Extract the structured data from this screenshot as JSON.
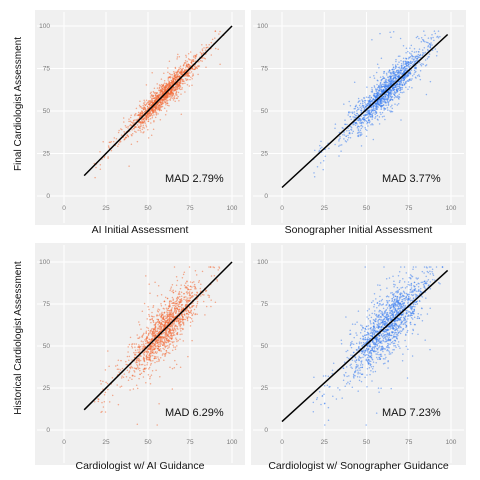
{
  "colors": {
    "ai": "#f26a36",
    "sonographer": "#3a7ef0",
    "panel_bg": "#f0f0f0",
    "grid": "#ffffff",
    "identity_line": "#000000"
  },
  "row_labels": [
    "Final Cardiologist Assessment",
    "Historical Cardiologist Assessment"
  ],
  "chart_data": [
    {
      "type": "scatter",
      "xlabel": "AI Initial Assessment",
      "ylabel": "Final Cardiologist Assessment",
      "annotation": "MAD 2.79%",
      "series_color": "ai",
      "xlim": [
        0,
        100
      ],
      "ylim": [
        0,
        100
      ],
      "xticks": [
        "0",
        "25",
        "50",
        "75",
        "100"
      ],
      "yticks": [
        "0",
        "25",
        "50",
        "75",
        "100"
      ],
      "grid": true,
      "identity_line": [
        [
          12,
          12
        ],
        [
          100,
          100
        ]
      ],
      "point_summary": {
        "n_approx": 1400,
        "x_center": 60,
        "x_spread": 10,
        "residual_spread": 3.5
      }
    },
    {
      "type": "scatter",
      "xlabel": "Sonographer Initial Assessment",
      "ylabel": "",
      "annotation": "MAD 3.77%",
      "series_color": "sonographer",
      "xlim": [
        0,
        100
      ],
      "ylim": [
        0,
        100
      ],
      "xticks": [
        "0",
        "25",
        "50",
        "75",
        "100"
      ],
      "yticks": [
        "0",
        "25",
        "50",
        "75",
        "100"
      ],
      "grid": true,
      "identity_line": [
        [
          0,
          5
        ],
        [
          98,
          95
        ]
      ],
      "point_summary": {
        "n_approx": 1400,
        "x_center": 62,
        "x_spread": 11,
        "residual_spread": 5
      }
    },
    {
      "type": "scatter",
      "xlabel": "Cardiologist w/ AI Guidance",
      "ylabel": "Historical Cardiologist Assessment",
      "annotation": "MAD 6.29%",
      "series_color": "ai",
      "xlim": [
        0,
        100
      ],
      "ylim": [
        0,
        100
      ],
      "xticks": [
        "0",
        "25",
        "50",
        "75",
        "100"
      ],
      "yticks": [
        "0",
        "25",
        "50",
        "75",
        "100"
      ],
      "grid": true,
      "identity_line": [
        [
          12,
          12
        ],
        [
          100,
          100
        ]
      ],
      "point_summary": {
        "n_approx": 1400,
        "x_center": 60,
        "x_spread": 10,
        "residual_spread": 7.5
      }
    },
    {
      "type": "scatter",
      "xlabel": "Cardiologist w/ Sonographer Guidance",
      "ylabel": "",
      "annotation": "MAD 7.23%",
      "series_color": "sonographer",
      "xlim": [
        0,
        100
      ],
      "ylim": [
        0,
        100
      ],
      "xticks": [
        "0",
        "25",
        "50",
        "75",
        "100"
      ],
      "yticks": [
        "0",
        "25",
        "50",
        "75",
        "100"
      ],
      "grid": true,
      "identity_line": [
        [
          0,
          5
        ],
        [
          98,
          95
        ]
      ],
      "point_summary": {
        "n_approx": 1400,
        "x_center": 62,
        "x_spread": 11,
        "residual_spread": 8.5
      }
    }
  ]
}
